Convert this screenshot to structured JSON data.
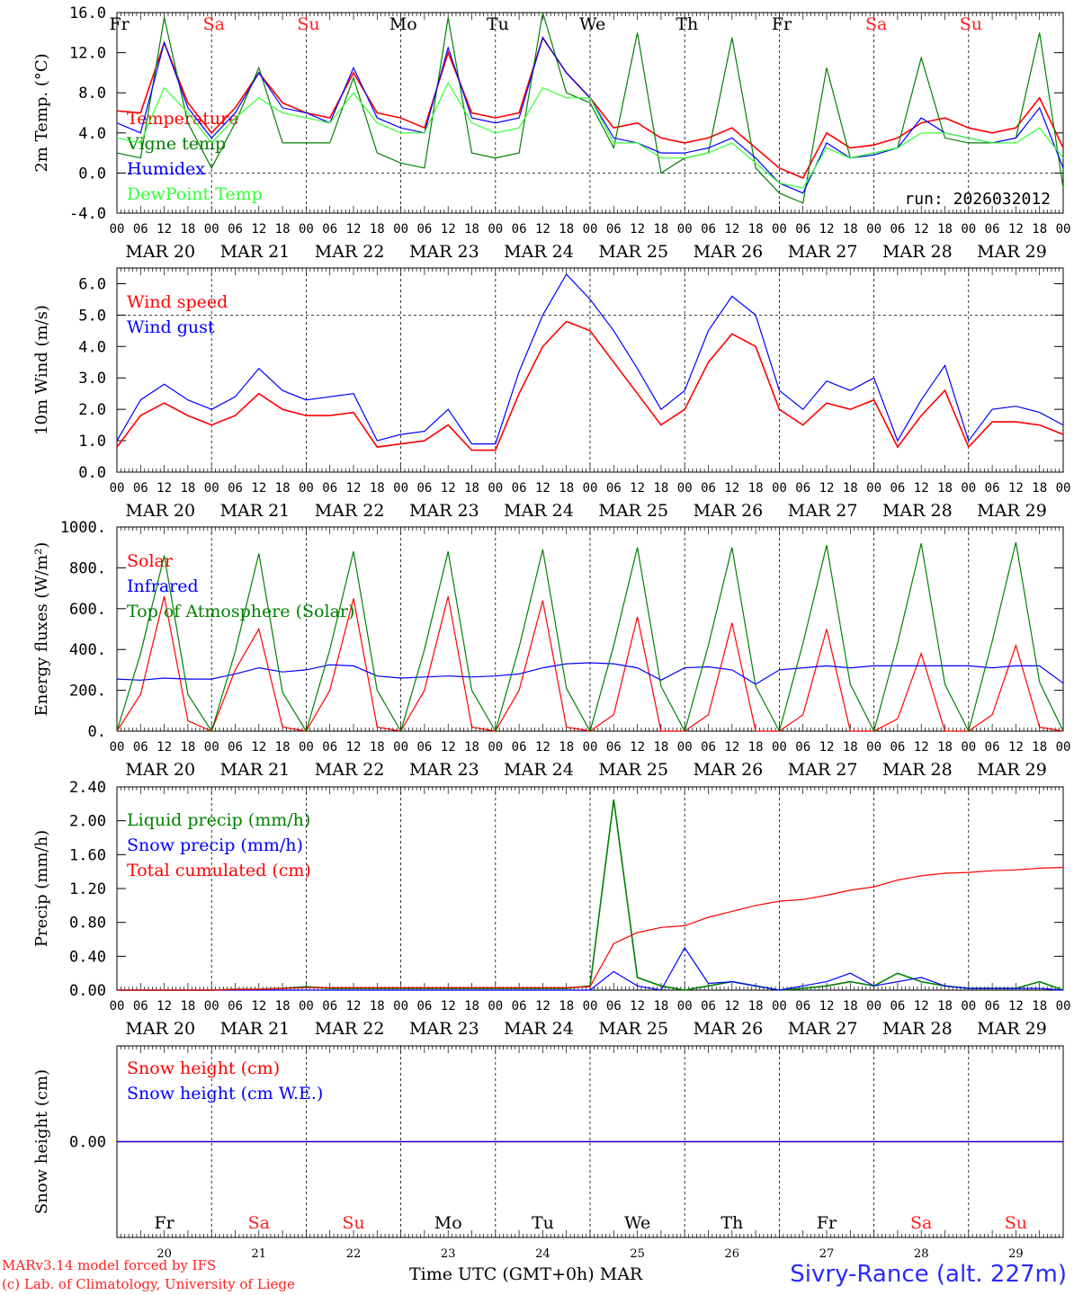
{
  "run_label": "run: 2026032012",
  "footer": {
    "model": "MARv3.14 model forced by IFS",
    "credit": "(c) Lab. of Climatology, University of Liege",
    "xlabel": "Time UTC (GMT+0h)",
    "month": "MAR",
    "station": "Sivry-Rance (alt. 227m)"
  },
  "colors": {
    "red": "#ff0000",
    "green": "#008000",
    "blue": "#0000ff",
    "lightgreen": "#33ff33",
    "grey": "#666666"
  },
  "days": {
    "weekdays": [
      "Fr",
      "Sa",
      "Su",
      "Mo",
      "Tu",
      "We",
      "Th",
      "Fr",
      "Sa",
      "Su"
    ],
    "weekend": [
      false,
      true,
      true,
      false,
      false,
      false,
      false,
      false,
      true,
      true
    ],
    "date_labels": [
      "MAR 20",
      "MAR 21",
      "MAR 22",
      "MAR 23",
      "MAR 24",
      "MAR 25",
      "MAR 26",
      "MAR 27",
      "MAR 28",
      "MAR 29"
    ],
    "day_numbers": [
      "20",
      "21",
      "22",
      "23",
      "24",
      "25",
      "26",
      "27",
      "28",
      "29"
    ],
    "hour_ticks": [
      "00",
      "06",
      "12",
      "18"
    ],
    "final_hour": "00"
  },
  "chart_data": [
    {
      "type": "line",
      "title": "2m Temp.",
      "ylabel": "2m Temp. (°C)",
      "xlabel": "Time UTC",
      "ylim": [
        -4,
        16
      ],
      "yticks": [
        "-4.0",
        "0.0",
        "4.0",
        "8.0",
        "12.0",
        "16.0"
      ],
      "yticks_values": [
        -4,
        0,
        4,
        8,
        12,
        16
      ],
      "ref_line": 0,
      "x_hours": [
        0,
        6,
        12,
        18,
        24,
        30,
        36,
        42,
        48,
        54,
        60,
        66,
        72,
        78,
        84,
        90,
        96,
        102,
        108,
        114,
        120,
        126,
        132,
        138,
        144,
        150,
        156,
        162,
        168,
        174,
        180,
        186,
        192,
        198,
        204,
        210,
        216,
        222,
        228,
        234,
        240
      ],
      "series": [
        {
          "name": "Temperature",
          "color": "#ff0000",
          "values": [
            6.2,
            6.0,
            13.0,
            7.0,
            4.0,
            6.5,
            10.0,
            7.0,
            6.0,
            5.5,
            10.0,
            6.0,
            5.5,
            4.5,
            12.0,
            6.0,
            5.5,
            6.0,
            13.5,
            10.0,
            7.5,
            4.5,
            5.0,
            3.5,
            3.0,
            3.5,
            4.5,
            2.5,
            0.5,
            -0.5,
            4.0,
            2.5,
            2.8,
            3.5,
            5.0,
            5.5,
            4.5,
            4.0,
            4.5,
            7.5,
            2.5
          ]
        },
        {
          "name": "Vigne temp",
          "color": "#008000",
          "values": [
            2.0,
            1.5,
            15.5,
            5.0,
            0.5,
            5.0,
            10.5,
            3.0,
            3.0,
            3.0,
            9.5,
            2.0,
            1.0,
            0.5,
            15.5,
            2.0,
            1.5,
            2.0,
            16.0,
            8.0,
            7.0,
            2.5,
            14.0,
            0.0,
            1.5,
            2.0,
            13.5,
            0.5,
            -2.0,
            -3.0,
            10.5,
            1.5,
            2.0,
            2.5,
            11.5,
            3.5,
            3.0,
            3.0,
            3.5,
            14.0,
            -1.5
          ]
        },
        {
          "name": "Humidex",
          "color": "#0000ff",
          "values": [
            5.0,
            4.0,
            13.0,
            6.5,
            3.5,
            6.0,
            10.0,
            6.5,
            6.0,
            5.0,
            10.5,
            5.5,
            4.5,
            4.0,
            12.5,
            5.5,
            5.0,
            5.5,
            13.5,
            10.0,
            7.5,
            3.5,
            3.0,
            2.0,
            2.0,
            2.5,
            3.5,
            1.5,
            -1.0,
            -2.0,
            3.0,
            1.5,
            1.8,
            2.5,
            5.5,
            4.0,
            3.5,
            3.0,
            3.5,
            6.5,
            0.5
          ]
        },
        {
          "name": "DewPoint Temp",
          "color": "#33ff33",
          "values": [
            3.5,
            3.0,
            8.5,
            6.0,
            3.0,
            5.5,
            7.5,
            6.0,
            5.5,
            5.0,
            8.0,
            5.0,
            4.0,
            4.0,
            9.0,
            5.0,
            4.0,
            4.5,
            8.5,
            7.5,
            7.5,
            3.0,
            3.0,
            1.5,
            1.5,
            2.0,
            3.0,
            1.0,
            -1.0,
            -1.5,
            2.5,
            1.5,
            2.0,
            2.5,
            4.0,
            4.0,
            3.5,
            3.0,
            3.0,
            4.5,
            1.5
          ]
        }
      ]
    },
    {
      "type": "line",
      "title": "10m Wind",
      "ylabel": "10m Wind (m/s)",
      "xlabel": "Time UTC",
      "ylim": [
        0,
        6.5
      ],
      "yticks": [
        "0.0",
        "1.0",
        "2.0",
        "3.0",
        "4.0",
        "5.0",
        "6.0"
      ],
      "yticks_values": [
        0,
        1,
        2,
        3,
        4,
        5,
        6
      ],
      "ref_line": 5,
      "x_hours": [
        0,
        6,
        12,
        18,
        24,
        30,
        36,
        42,
        48,
        54,
        60,
        66,
        72,
        78,
        84,
        90,
        96,
        102,
        108,
        114,
        120,
        126,
        132,
        138,
        144,
        150,
        156,
        162,
        168,
        174,
        180,
        186,
        192,
        198,
        204,
        210,
        216,
        222,
        228,
        234,
        240
      ],
      "series": [
        {
          "name": "Wind speed",
          "color": "#ff0000",
          "values": [
            0.8,
            1.8,
            2.2,
            1.8,
            1.5,
            1.8,
            2.5,
            2.0,
            1.8,
            1.8,
            1.9,
            0.8,
            0.9,
            1.0,
            1.5,
            0.7,
            0.7,
            2.5,
            4.0,
            4.8,
            4.5,
            3.5,
            2.5,
            1.5,
            2.0,
            3.5,
            4.4,
            4.0,
            2.0,
            1.5,
            2.2,
            2.0,
            2.3,
            0.8,
            1.8,
            2.6,
            0.8,
            1.6,
            1.6,
            1.5,
            1.2
          ]
        },
        {
          "name": "Wind gust",
          "color": "#0000ff",
          "values": [
            1.0,
            2.3,
            2.8,
            2.3,
            2.0,
            2.4,
            3.3,
            2.6,
            2.3,
            2.4,
            2.5,
            1.0,
            1.2,
            1.3,
            2.0,
            0.9,
            0.9,
            3.2,
            5.0,
            6.3,
            5.5,
            4.5,
            3.3,
            2.0,
            2.6,
            4.5,
            5.6,
            5.0,
            2.6,
            2.0,
            2.9,
            2.6,
            3.0,
            1.0,
            2.3,
            3.4,
            1.0,
            2.0,
            2.1,
            1.9,
            1.5
          ]
        }
      ]
    },
    {
      "type": "line",
      "title": "Energy fluxes",
      "ylabel": "Energy fluxes (W/m²)",
      "xlabel": "Time UTC",
      "ylim": [
        0,
        1000
      ],
      "yticks": [
        "0.",
        "200.",
        "400.",
        "600.",
        "800.",
        "1000."
      ],
      "yticks_values": [
        0,
        200,
        400,
        600,
        800,
        1000
      ],
      "x_hours": [
        0,
        6,
        12,
        18,
        24,
        30,
        36,
        42,
        48,
        54,
        60,
        66,
        72,
        78,
        84,
        90,
        96,
        102,
        108,
        114,
        120,
        126,
        132,
        138,
        144,
        150,
        156,
        162,
        168,
        174,
        180,
        186,
        192,
        198,
        204,
        210,
        216,
        222,
        228,
        234,
        240
      ],
      "series": [
        {
          "name": "Solar",
          "color": "#ff0000",
          "values": [
            0,
            180,
            660,
            50,
            0,
            300,
            500,
            20,
            0,
            200,
            650,
            20,
            0,
            200,
            660,
            20,
            0,
            200,
            640,
            20,
            0,
            80,
            560,
            0,
            0,
            80,
            530,
            0,
            0,
            80,
            500,
            0,
            0,
            60,
            380,
            0,
            0,
            80,
            420,
            20,
            0
          ]
        },
        {
          "name": "Infrared",
          "color": "#0000ff",
          "values": [
            255,
            250,
            260,
            255,
            255,
            280,
            310,
            290,
            300,
            325,
            320,
            270,
            260,
            265,
            270,
            265,
            270,
            280,
            310,
            330,
            335,
            330,
            310,
            250,
            310,
            315,
            300,
            230,
            300,
            310,
            320,
            310,
            320,
            320,
            320,
            320,
            320,
            310,
            320,
            320,
            235
          ]
        },
        {
          "name": "Top of Atmosphere (Solar)",
          "color": "#008000",
          "values": [
            0,
            380,
            860,
            180,
            0,
            390,
            870,
            190,
            0,
            400,
            880,
            200,
            0,
            400,
            880,
            200,
            0,
            410,
            890,
            210,
            0,
            420,
            900,
            220,
            0,
            420,
            900,
            220,
            0,
            430,
            910,
            230,
            0,
            430,
            920,
            230,
            0,
            440,
            925,
            240,
            0
          ]
        }
      ]
    },
    {
      "type": "line",
      "title": "Precip",
      "ylabel": "Precip (mm/h)",
      "xlabel": "Time UTC",
      "ylim": [
        0,
        2.4
      ],
      "yticks": [
        "0.00",
        "0.40",
        "0.80",
        "1.20",
        "1.60",
        "2.00",
        "2.40"
      ],
      "yticks_values": [
        0,
        0.4,
        0.8,
        1.2,
        1.6,
        2.0,
        2.4
      ],
      "x_hours": [
        0,
        6,
        12,
        18,
        24,
        30,
        36,
        42,
        48,
        54,
        60,
        66,
        72,
        78,
        84,
        90,
        96,
        102,
        108,
        114,
        120,
        126,
        132,
        138,
        144,
        150,
        156,
        162,
        168,
        174,
        180,
        186,
        192,
        198,
        204,
        210,
        216,
        222,
        228,
        234,
        240
      ],
      "series": [
        {
          "name": "Liquid precip (mm/h)",
          "color": "#008000",
          "values": [
            0,
            0,
            0,
            0,
            0,
            0.01,
            0.01,
            0.02,
            0.04,
            0.02,
            0.02,
            0.02,
            0.02,
            0.02,
            0.02,
            0.02,
            0.02,
            0.02,
            0.02,
            0.02,
            0.05,
            2.25,
            0.15,
            0.05,
            0,
            0.05,
            0.1,
            0.05,
            0,
            0.02,
            0.05,
            0.1,
            0.05,
            0.2,
            0.1,
            0.05,
            0.02,
            0.02,
            0.02,
            0.1,
            0
          ]
        },
        {
          "name": "Snow precip (mm/h)",
          "color": "#0000ff",
          "values": [
            0,
            0,
            0,
            0,
            0,
            0,
            0,
            0,
            0,
            0,
            0,
            0,
            0,
            0,
            0,
            0,
            0,
            0,
            0,
            0,
            0,
            0.22,
            0.05,
            0,
            0.5,
            0.08,
            0.1,
            0.05,
            0,
            0.05,
            0.1,
            0.2,
            0.05,
            0.1,
            0.15,
            0.05,
            0.02,
            0.02,
            0.02,
            0.02,
            0
          ]
        },
        {
          "name": "Total cumulated (cm)",
          "color": "#ff0000",
          "values": [
            0,
            0,
            0,
            0,
            0,
            0.01,
            0.01,
            0.02,
            0.03,
            0.03,
            0.03,
            0.03,
            0.03,
            0.03,
            0.03,
            0.03,
            0.03,
            0.03,
            0.03,
            0.03,
            0.04,
            0.55,
            0.68,
            0.74,
            0.76,
            0.86,
            0.93,
            1.0,
            1.05,
            1.07,
            1.12,
            1.18,
            1.22,
            1.3,
            1.35,
            1.38,
            1.39,
            1.41,
            1.42,
            1.44,
            1.45
          ]
        }
      ]
    },
    {
      "type": "line",
      "title": "Snow height",
      "ylabel": "Snow height (cm)",
      "xlabel": "Time UTC (GMT+0h) MAR",
      "ylim": [
        -1,
        1
      ],
      "yticks": [
        "0.00"
      ],
      "yticks_values": [
        0
      ],
      "x_hours": [
        0,
        240
      ],
      "series": [
        {
          "name": "Snow height (cm)",
          "color": "#ff0000",
          "values": [
            0,
            0
          ]
        },
        {
          "name": "Snow height (cm W.E.)",
          "color": "#0000ff",
          "values": [
            0,
            0
          ]
        }
      ]
    }
  ]
}
